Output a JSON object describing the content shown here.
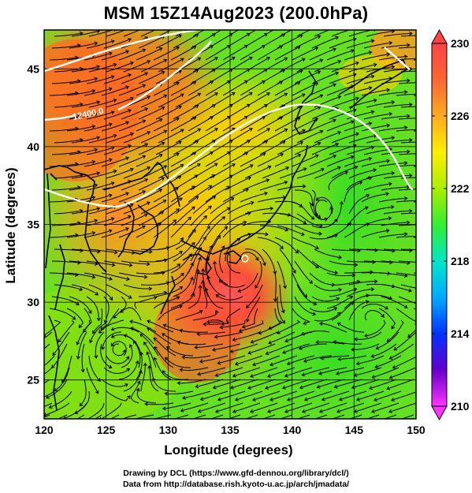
{
  "title": "MSM 15Z14Aug2023 (200.0hPa)",
  "xlabel": "Longitude (degrees)",
  "ylabel": "Latitude  (degrees)",
  "credit_line1": "Drawing by DCL (https://www.gfd-dennou.org/library/dcl/)",
  "credit_line2": "Data from http://database.rish.kyoto-u.ac.jp/arch/jmadata/",
  "map": {
    "lon_range": [
      120,
      150
    ],
    "lat_range": [
      22.5,
      47.5
    ],
    "lon_ticks": [
      120,
      125,
      130,
      135,
      140,
      145,
      150
    ],
    "lat_ticks": [
      25,
      30,
      35,
      40,
      45
    ],
    "grid": true,
    "contour_labels": [
      "12400.0"
    ],
    "typhoon_center": {
      "lon": 136.2,
      "lat": 32.8
    }
  },
  "colorbar": {
    "min": 210,
    "max": 230,
    "tick_labels": [
      "230",
      "226",
      "222",
      "218",
      "214",
      "210"
    ],
    "colors": [
      "#ff33ff",
      "#6600cc",
      "#0033ff",
      "#00aaff",
      "#00e6c8",
      "#33ee33",
      "#aaee00",
      "#ffee00",
      "#ffaa22",
      "#ff6633",
      "#ff4444"
    ]
  }
}
